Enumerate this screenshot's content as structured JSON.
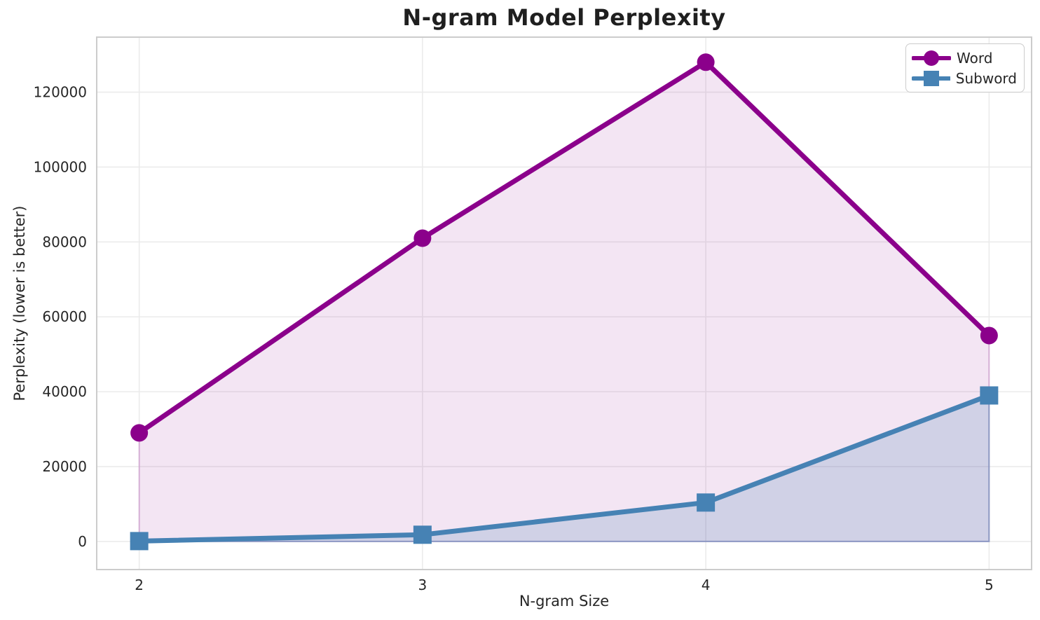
{
  "chart_data": {
    "type": "line",
    "title": "N-gram Model Perplexity",
    "xlabel": "N-gram Size",
    "ylabel": "Perplexity (lower is better)",
    "x": [
      2,
      3,
      4,
      5
    ],
    "xticks": [
      2,
      3,
      4,
      5
    ],
    "yticks": [
      0,
      20000,
      40000,
      60000,
      80000,
      100000,
      120000
    ],
    "xlim": [
      1.85,
      5.15
    ],
    "ylim": [
      -7500,
      134700
    ],
    "grid": true,
    "area_fill_to_zero": true,
    "legend_position": "upper right",
    "series": [
      {
        "name": "Word",
        "values": [
          29000,
          81000,
          128000,
          55000
        ],
        "color": "#8B008B",
        "marker": "circle",
        "fill_alpha": 0.1
      },
      {
        "name": "Subword",
        "values": [
          100,
          1800,
          10400,
          39000
        ],
        "color": "#4682B4",
        "marker": "square",
        "fill_alpha": 0.2
      }
    ]
  },
  "colors": {
    "background": "#FFFFFF",
    "grid": "#EBEBEB",
    "spine": "#CCCCCC",
    "tick_text": "#262626",
    "title_text": "#1F1F1F"
  }
}
